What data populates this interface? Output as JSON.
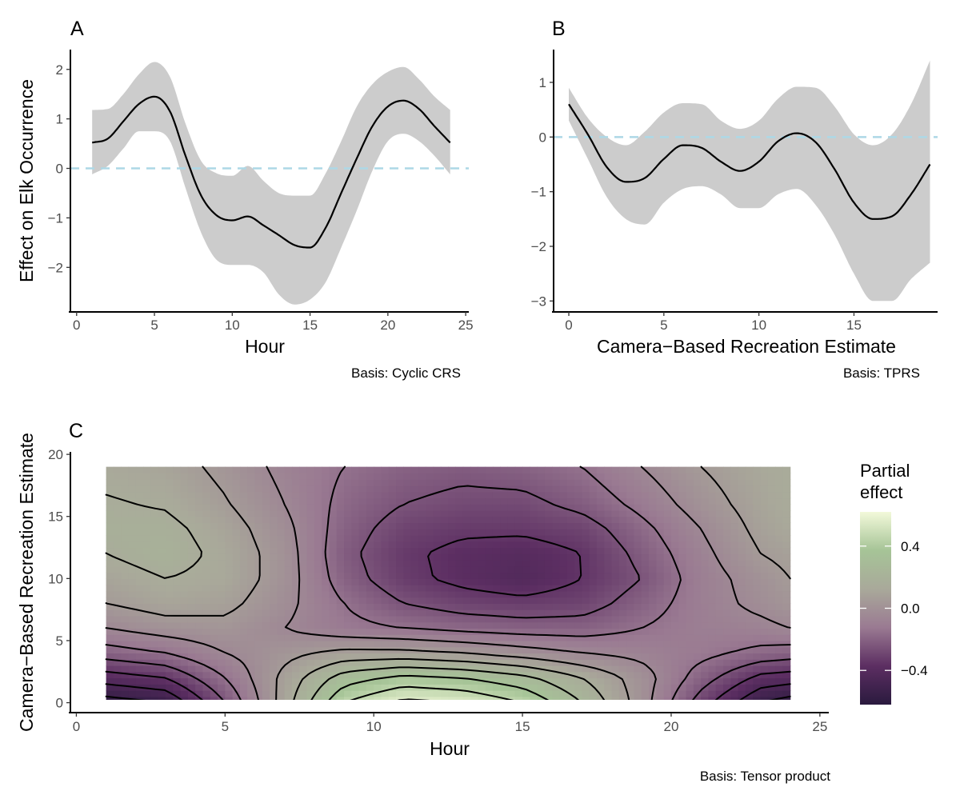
{
  "chart_data": [
    {
      "type": "line",
      "panel_tag": "A",
      "xlabel": "Hour",
      "ylabel": "Effect on Elk Occurrence",
      "caption": "Basis: Cyclic CRS",
      "xlim": [
        -0.4,
        25.2
      ],
      "ylim": [
        -2.9,
        2.4
      ],
      "xticks": [
        0,
        5,
        10,
        15,
        20,
        25
      ],
      "xtick_labels": [
        "0",
        "5",
        "10",
        "15",
        "20",
        "25"
      ],
      "yticks": [
        -2,
        -1,
        0,
        1,
        2
      ],
      "ytick_labels": [
        "−2",
        "−1",
        "0",
        "1",
        "2"
      ],
      "reference_line": 0,
      "reference_color": "#add8e6",
      "ribbon_color": "#cccccc",
      "line_color": "#000000",
      "x": [
        1,
        2,
        3,
        4,
        5,
        6,
        7,
        8,
        9,
        10,
        11,
        12,
        13,
        14,
        15,
        16,
        17,
        18,
        19,
        20,
        21,
        22,
        23,
        24
      ],
      "y": [
        0.52,
        0.6,
        0.95,
        1.3,
        1.45,
        1.15,
        0.25,
        -0.55,
        -0.95,
        -1.05,
        -0.97,
        -1.15,
        -1.35,
        -1.55,
        -1.6,
        -1.2,
        -0.5,
        0.2,
        0.85,
        1.25,
        1.37,
        1.2,
        0.85,
        0.52
      ],
      "lower": [
        -0.12,
        0.05,
        0.4,
        0.75,
        0.75,
        0.55,
        -0.4,
        -1.3,
        -1.85,
        -1.95,
        -1.95,
        -2.1,
        -2.55,
        -2.75,
        -2.65,
        -2.3,
        -1.6,
        -0.85,
        -0.05,
        0.55,
        0.7,
        0.55,
        0.25,
        -0.12
      ],
      "upper": [
        1.18,
        1.2,
        1.5,
        1.9,
        2.15,
        1.85,
        0.9,
        0.15,
        -0.1,
        -0.15,
        0.05,
        -0.25,
        -0.5,
        -0.55,
        -0.55,
        -0.1,
        0.55,
        1.25,
        1.7,
        1.95,
        2.05,
        1.8,
        1.45,
        1.18
      ]
    },
    {
      "type": "line",
      "panel_tag": "B",
      "xlabel": "Camera−Based Recreation Estimate",
      "ylabel": "",
      "caption": "Basis: TPRS",
      "xlim": [
        -0.8,
        19.4
      ],
      "ylim": [
        -3.2,
        1.6
      ],
      "xticks": [
        0,
        5,
        10,
        15
      ],
      "xtick_labels": [
        "0",
        "5",
        "10",
        "15"
      ],
      "yticks": [
        -3,
        -2,
        -1,
        0,
        1
      ],
      "ytick_labels": [
        "−3",
        "−2",
        "−1",
        "0",
        "1"
      ],
      "reference_line": 0,
      "reference_color": "#add8e6",
      "ribbon_color": "#cccccc",
      "line_color": "#000000",
      "x": [
        0,
        1,
        2,
        3,
        4,
        5,
        6,
        7,
        8,
        9,
        10,
        11,
        12,
        13,
        14,
        15,
        16,
        17,
        18,
        19
      ],
      "y": [
        0.6,
        0.05,
        -0.55,
        -0.82,
        -0.75,
        -0.4,
        -0.15,
        -0.2,
        -0.45,
        -0.62,
        -0.45,
        -0.08,
        0.07,
        -0.1,
        -0.6,
        -1.2,
        -1.5,
        -1.45,
        -1.05,
        -0.5
      ],
      "lower": [
        0.3,
        -0.4,
        -1.1,
        -1.5,
        -1.6,
        -1.2,
        -0.95,
        -0.9,
        -1.05,
        -1.3,
        -1.3,
        -1.05,
        -0.95,
        -1.25,
        -1.8,
        -2.5,
        -3.0,
        -3.0,
        -2.6,
        -2.3
      ],
      "upper": [
        0.9,
        0.35,
        0.0,
        -0.15,
        0.1,
        0.45,
        0.62,
        0.6,
        0.3,
        0.15,
        0.3,
        0.7,
        0.92,
        0.9,
        0.55,
        0.05,
        -0.15,
        0.05,
        0.6,
        1.4
      ]
    },
    {
      "type": "heatmap",
      "panel_tag": "C",
      "xlabel": "Hour",
      "ylabel": "Camera−Based Recreation Estimate",
      "caption": "Basis: Tensor product",
      "xlim": [
        -0.2,
        25.3
      ],
      "ylim": [
        -0.8,
        20.2
      ],
      "xticks": [
        0,
        5,
        10,
        15,
        20,
        25
      ],
      "xtick_labels": [
        "0",
        "5",
        "10",
        "15",
        "20",
        "25"
      ],
      "yticks": [
        0,
        5,
        10,
        15,
        20
      ],
      "ytick_labels": [
        "0",
        "5",
        "10",
        "15",
        "20"
      ],
      "data_extent": {
        "x": [
          1,
          24
        ],
        "y": [
          0,
          19
        ]
      },
      "x": [
        1,
        3,
        5,
        7,
        9,
        11,
        13,
        15,
        17,
        19,
        21,
        23,
        24
      ],
      "y": [
        0,
        2,
        4,
        6,
        8,
        10,
        12,
        14,
        16,
        19
      ],
      "z": [
        [
          -0.6,
          -0.55,
          -0.25,
          0.1,
          0.45,
          0.58,
          0.55,
          0.45,
          0.25,
          0.0,
          -0.3,
          -0.55,
          -0.6
        ],
        [
          -0.4,
          -0.35,
          -0.15,
          0.08,
          0.3,
          0.38,
          0.35,
          0.28,
          0.15,
          0.0,
          -0.2,
          -0.38,
          -0.4
        ],
        [
          -0.2,
          -0.15,
          -0.05,
          0.02,
          0.08,
          0.08,
          0.05,
          0.0,
          -0.05,
          -0.08,
          -0.12,
          -0.18,
          -0.2
        ],
        [
          -0.05,
          0.0,
          0.02,
          -0.05,
          -0.12,
          -0.15,
          -0.18,
          -0.2,
          -0.2,
          -0.15,
          -0.1,
          -0.08,
          -0.05
        ],
        [
          0.05,
          0.1,
          0.08,
          -0.02,
          -0.15,
          -0.25,
          -0.3,
          -0.32,
          -0.3,
          -0.2,
          -0.1,
          -0.02,
          0.02
        ],
        [
          0.1,
          0.15,
          0.12,
          0.0,
          -0.2,
          -0.32,
          -0.38,
          -0.42,
          -0.35,
          -0.25,
          -0.1,
          0.0,
          0.05
        ],
        [
          0.15,
          0.2,
          0.12,
          0.0,
          -0.22,
          -0.33,
          -0.38,
          -0.4,
          -0.35,
          -0.22,
          -0.08,
          0.05,
          0.08
        ],
        [
          0.18,
          0.18,
          0.1,
          -0.02,
          -0.2,
          -0.3,
          -0.33,
          -0.33,
          -0.3,
          -0.18,
          -0.05,
          0.08,
          0.12
        ],
        [
          0.16,
          0.14,
          0.06,
          -0.05,
          -0.18,
          -0.25,
          -0.28,
          -0.28,
          -0.22,
          -0.12,
          0.0,
          0.1,
          0.14
        ],
        [
          0.12,
          0.1,
          0.02,
          -0.08,
          -0.15,
          -0.2,
          -0.22,
          -0.2,
          -0.15,
          -0.05,
          0.05,
          0.12,
          0.15
        ]
      ],
      "colorscale": [
        "#2a1a3e",
        "#5c2e62",
        "#9a7a92",
        "#a9a99a",
        "#a6c497",
        "#f3f9da"
      ],
      "zlim": [
        -0.62,
        0.62
      ],
      "legend_title": [
        "Partial",
        "effect"
      ],
      "legend_ticks": [
        0.4,
        0.0,
        -0.4
      ],
      "legend_tick_labels": [
        "0.4",
        "0.0",
        "−0.4"
      ],
      "contour_color": "#000000"
    }
  ]
}
